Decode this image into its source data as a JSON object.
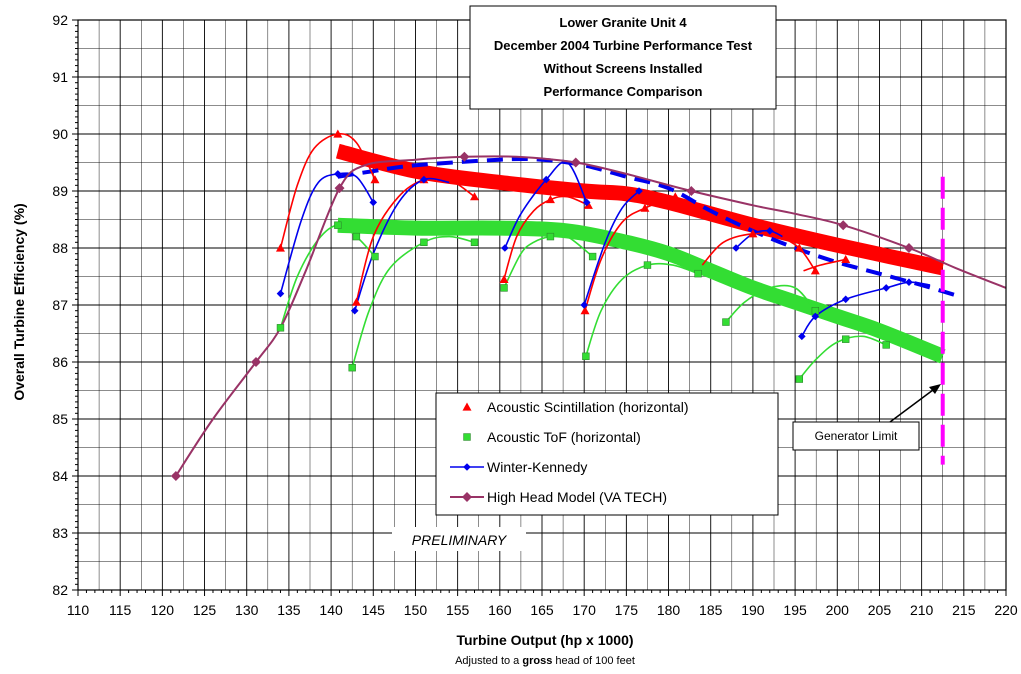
{
  "chart_data": {
    "type": "scatter",
    "title_lines": [
      "Lower Granite Unit 4",
      "December 2004 Turbine Performance Test",
      "Without Screens Installed",
      "Performance Comparison"
    ],
    "xlabel": "Turbine Output (hp x 1000)",
    "xsublabel_parts": [
      "Adjusted to a ",
      "gross",
      " head of 100 feet"
    ],
    "ylabel": "Overall Turbine Efficiency (%)",
    "xlim": [
      110,
      220
    ],
    "ylim": [
      82,
      92
    ],
    "xticks": [
      110,
      115,
      120,
      125,
      130,
      135,
      140,
      145,
      150,
      155,
      160,
      165,
      170,
      175,
      180,
      185,
      190,
      195,
      200,
      205,
      210,
      215,
      220
    ],
    "yticks": [
      82,
      83,
      84,
      85,
      86,
      87,
      88,
      89,
      90,
      91,
      92
    ],
    "grid": true,
    "legend_position": "lower-center",
    "watermark": "PRELIMINARY",
    "generator_limit": {
      "x": 212.5,
      "label": "Generator Limit",
      "color": "#ff00ff"
    },
    "series": [
      {
        "name": "Acoustic Scintillation (horizontal)",
        "color": "#ff0000",
        "marker": "triangle",
        "points": [
          [
            134,
            88
          ],
          [
            140.8,
            90
          ],
          [
            145.2,
            89.2
          ],
          [
            143,
            87.05
          ],
          [
            151,
            89.2
          ],
          [
            157,
            88.9
          ],
          [
            160.5,
            87.45
          ],
          [
            166,
            88.85
          ],
          [
            170.5,
            88.75
          ],
          [
            170.1,
            86.9
          ],
          [
            177.2,
            88.7
          ],
          [
            180.8,
            88.9
          ],
          [
            190,
            88.25
          ],
          [
            195.5,
            88
          ],
          [
            197.4,
            87.6
          ],
          [
            201,
            87.8
          ]
        ],
        "segments": [
          [
            [
              134,
              88
            ],
            [
              136,
              89.1
            ],
            [
              138,
              89.75
            ],
            [
              140.8,
              90
            ],
            [
              143,
              89.85
            ],
            [
              145.2,
              89.2
            ]
          ],
          [
            [
              143,
              87.05
            ],
            [
              145,
              88.2
            ],
            [
              148,
              88.9
            ],
            [
              151,
              89.2
            ],
            [
              154,
              89.2
            ],
            [
              157,
              88.9
            ]
          ],
          [
            [
              160.5,
              87.45
            ],
            [
              162,
              88.2
            ],
            [
              164,
              88.65
            ],
            [
              166,
              88.85
            ],
            [
              168,
              88.9
            ],
            [
              170.5,
              88.75
            ]
          ],
          [
            [
              170.1,
              86.9
            ],
            [
              172,
              87.8
            ],
            [
              174.5,
              88.45
            ],
            [
              177.2,
              88.7
            ],
            [
              180.8,
              88.9
            ]
          ],
          [
            [
              184,
              87.7
            ],
            [
              186.5,
              88.1
            ],
            [
              190,
              88.25
            ],
            [
              193,
              88.2
            ],
            [
              195.5,
              88
            ],
            [
              197.4,
              87.6
            ]
          ],
          [
            [
              196,
              87.6
            ],
            [
              198,
              87.7
            ],
            [
              201,
              87.8
            ]
          ]
        ],
        "trend": [
          [
            140.8,
            89.7
          ],
          [
            150,
            89.35
          ],
          [
            160,
            89.15
          ],
          [
            170,
            89
          ],
          [
            175,
            88.95
          ],
          [
            180,
            88.8
          ],
          [
            190,
            88.4
          ],
          [
            200,
            88.05
          ],
          [
            212.5,
            87.65
          ]
        ]
      },
      {
        "name": "Acoustic ToF (horizontal)",
        "color": "#33dd33",
        "marker": "square",
        "points": [
          [
            134,
            86.6
          ],
          [
            140.8,
            88.4
          ],
          [
            143,
            88.2
          ],
          [
            145.2,
            87.85
          ],
          [
            142.5,
            85.9
          ],
          [
            151,
            88.1
          ],
          [
            157,
            88.1
          ],
          [
            160.5,
            87.3
          ],
          [
            166,
            88.2
          ],
          [
            170.2,
            86.1
          ],
          [
            171,
            87.85
          ],
          [
            177.5,
            87.7
          ],
          [
            183.5,
            87.55
          ],
          [
            186.8,
            86.7
          ],
          [
            195.5,
            85.7
          ],
          [
            197.4,
            86.9
          ],
          [
            201,
            86.4
          ],
          [
            205.8,
            86.3
          ]
        ],
        "segments": [
          [
            [
              134,
              86.6
            ],
            [
              136,
              87.5
            ],
            [
              138.5,
              88.15
            ],
            [
              140.8,
              88.4
            ],
            [
              143,
              88.2
            ],
            [
              145.2,
              87.85
            ]
          ],
          [
            [
              142.5,
              85.9
            ],
            [
              144.5,
              86.9
            ],
            [
              147,
              87.65
            ],
            [
              151,
              88.1
            ],
            [
              154,
              88.2
            ],
            [
              157,
              88.1
            ]
          ],
          [
            [
              160.5,
              87.3
            ],
            [
              162.5,
              87.9
            ],
            [
              164,
              88.1
            ],
            [
              166,
              88.2
            ],
            [
              168,
              88.2
            ],
            [
              171,
              87.85
            ]
          ],
          [
            [
              170.2,
              86.1
            ],
            [
              172,
              86.9
            ],
            [
              174.5,
              87.45
            ],
            [
              177.5,
              87.7
            ],
            [
              180.5,
              87.7
            ],
            [
              183.5,
              87.55
            ]
          ],
          [
            [
              186.8,
              86.7
            ],
            [
              189,
              87.05
            ],
            [
              192,
              87.3
            ],
            [
              195,
              87.3
            ],
            [
              197.4,
              86.9
            ]
          ],
          [
            [
              195.5,
              85.7
            ],
            [
              197.5,
              86.05
            ],
            [
              200,
              86.35
            ],
            [
              203,
              86.45
            ],
            [
              205.8,
              86.3
            ]
          ]
        ],
        "trend": [
          [
            140.8,
            88.4
          ],
          [
            150,
            88.35
          ],
          [
            160,
            88.35
          ],
          [
            168,
            88.3
          ],
          [
            175,
            88.1
          ],
          [
            180,
            87.9
          ],
          [
            185,
            87.6
          ],
          [
            190,
            87.3
          ],
          [
            195,
            87.05
          ],
          [
            200,
            86.8
          ],
          [
            205,
            86.55
          ],
          [
            212.5,
            86.1
          ]
        ]
      },
      {
        "name": "Winter-Kennedy",
        "color": "#0000ee",
        "marker": "diamond",
        "points": [
          [
            134,
            87.2
          ],
          [
            140.8,
            89.3
          ],
          [
            145,
            88.8
          ],
          [
            142.8,
            86.9
          ],
          [
            151,
            89.2
          ],
          [
            160.6,
            88
          ],
          [
            165.5,
            89.2
          ],
          [
            170.3,
            88.8
          ],
          [
            170,
            87
          ],
          [
            176.5,
            89
          ],
          [
            188,
            88
          ],
          [
            192,
            88.3
          ],
          [
            195.8,
            86.45
          ],
          [
            197.4,
            86.8
          ],
          [
            201,
            87.1
          ],
          [
            205.8,
            87.3
          ],
          [
            208.5,
            87.4
          ]
        ],
        "segments": [
          [
            [
              134,
              87.2
            ],
            [
              136.5,
              88.5
            ],
            [
              138.5,
              89.15
            ],
            [
              140.8,
              89.3
            ],
            [
              143,
              89.25
            ],
            [
              145,
              88.8
            ]
          ],
          [
            [
              142.8,
              86.9
            ],
            [
              145,
              87.9
            ],
            [
              148,
              88.8
            ],
            [
              151,
              89.2
            ],
            [
              154,
              89.15
            ]
          ],
          [
            [
              160.6,
              88
            ],
            [
              162.5,
              88.6
            ],
            [
              165.5,
              89.2
            ],
            [
              168,
              89.5
            ],
            [
              170.3,
              88.8
            ]
          ],
          [
            [
              170,
              87
            ],
            [
              172.5,
              88.1
            ],
            [
              174.5,
              88.7
            ],
            [
              176.5,
              89
            ]
          ],
          [
            [
              188,
              88
            ],
            [
              190,
              88.25
            ],
            [
              192,
              88.3
            ],
            [
              193.5,
              88.2
            ]
          ],
          [
            [
              195.8,
              86.45
            ],
            [
              197.4,
              86.8
            ],
            [
              201,
              87.1
            ],
            [
              205.8,
              87.3
            ],
            [
              208.5,
              87.4
            ],
            [
              211,
              87.35
            ]
          ]
        ],
        "trend": [
          [
            140.8,
            89.25
          ],
          [
            145,
            89.35
          ],
          [
            150,
            89.45
          ],
          [
            160,
            89.55
          ],
          [
            165,
            89.55
          ],
          [
            170,
            89.45
          ],
          [
            175,
            89.25
          ],
          [
            180,
            89.05
          ],
          [
            185,
            88.65
          ],
          [
            190,
            88.3
          ],
          [
            195,
            88.0
          ],
          [
            200,
            87.75
          ],
          [
            205,
            87.55
          ],
          [
            210,
            87.35
          ],
          [
            214.5,
            87.15
          ]
        ]
      },
      {
        "name": "High Head Model (VA TECH)",
        "color": "#993366",
        "marker": "diamond",
        "points": [
          [
            121.6,
            84
          ],
          [
            131.1,
            86
          ],
          [
            141,
            89.05
          ],
          [
            155.8,
            89.6
          ],
          [
            169,
            89.5
          ],
          [
            182.7,
            89
          ],
          [
            200.7,
            88.4
          ],
          [
            208.5,
            88
          ]
        ],
        "segments": [],
        "line": [
          [
            121.6,
            84
          ],
          [
            126,
            85
          ],
          [
            131.1,
            86
          ],
          [
            134,
            86.6
          ],
          [
            137,
            87.6
          ],
          [
            141,
            89.05
          ],
          [
            144,
            89.45
          ],
          [
            150,
            89.55
          ],
          [
            155.8,
            89.6
          ],
          [
            162,
            89.6
          ],
          [
            169,
            89.5
          ],
          [
            175,
            89.3
          ],
          [
            182.7,
            89
          ],
          [
            190,
            88.75
          ],
          [
            195,
            88.6
          ],
          [
            200.7,
            88.4
          ],
          [
            208.5,
            88
          ],
          [
            214,
            87.65
          ],
          [
            220,
            87.3
          ]
        ]
      }
    ]
  }
}
